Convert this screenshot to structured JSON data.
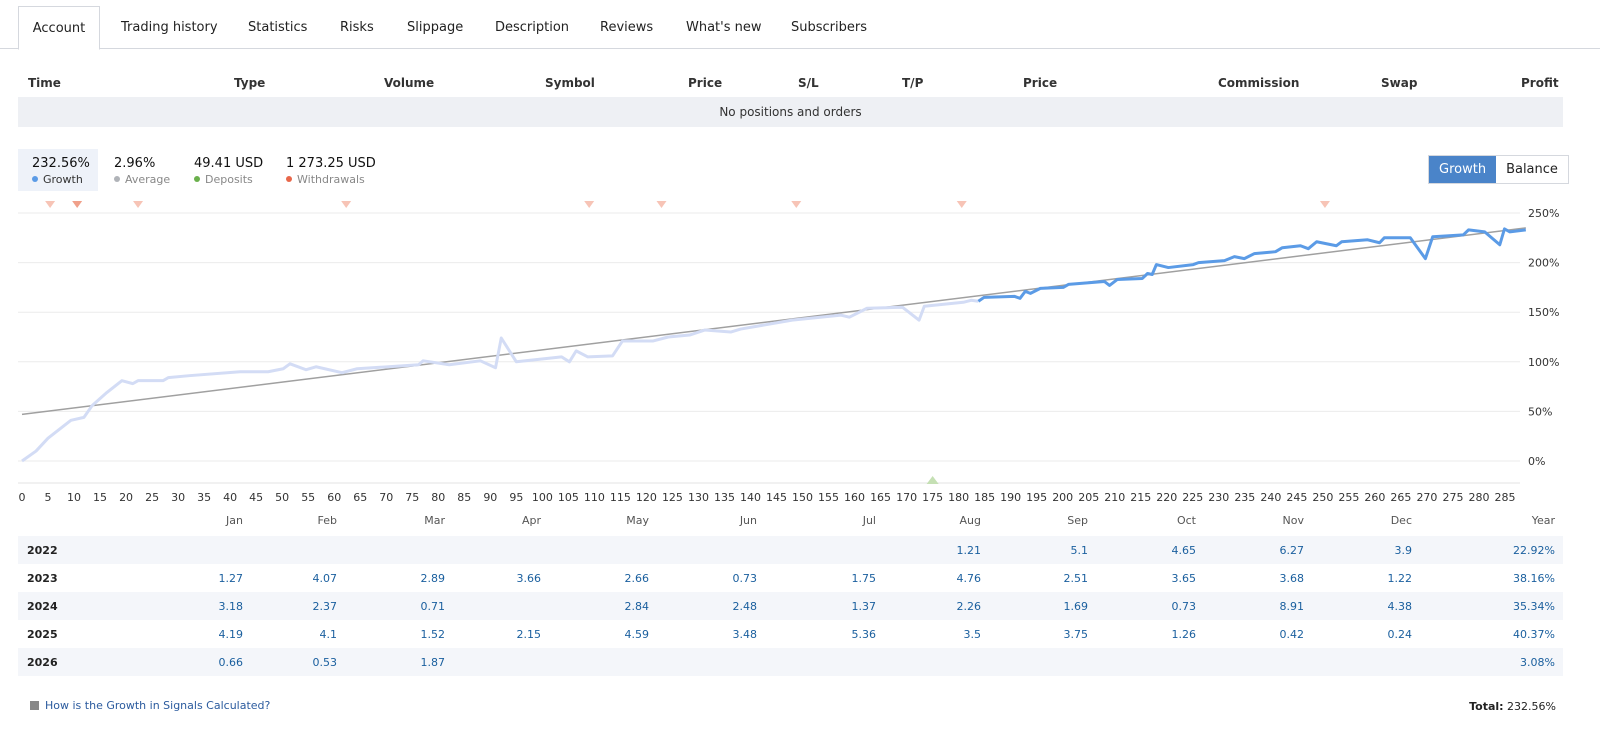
{
  "tabs": [
    "Account",
    "Trading history",
    "Statistics",
    "Risks",
    "Slippage",
    "Description",
    "Reviews",
    "What's new",
    "Subscribers"
  ],
  "active_tab": "Account",
  "positions": {
    "headers": [
      "Time",
      "Type",
      "Volume",
      "Symbol",
      "Price",
      "S/L",
      "T/P",
      "Price",
      "Commission",
      "Swap",
      "Profit"
    ],
    "empty_text": "No positions and orders"
  },
  "stats": [
    {
      "value": "232.56%",
      "label": "Growth",
      "color": "#5b9be6"
    },
    {
      "value": "2.96%",
      "label": "Average",
      "color": "#b0b3b8"
    },
    {
      "value": "49.41 USD",
      "label": "Deposits",
      "color": "#6ab04c"
    },
    {
      "value": "1 273.25 USD",
      "label": "Withdrawals",
      "color": "#e8674a"
    }
  ],
  "toggle": {
    "growth": "Growth",
    "balance": "Balance",
    "active": "Growth"
  },
  "chart_data": {
    "type": "line",
    "xlim": [
      0,
      285
    ],
    "ylim": [
      0,
      250
    ],
    "x_ticks": [
      0,
      5,
      10,
      15,
      20,
      25,
      30,
      35,
      40,
      45,
      50,
      55,
      60,
      65,
      70,
      75,
      80,
      85,
      90,
      95,
      100,
      105,
      110,
      115,
      120,
      125,
      130,
      135,
      140,
      145,
      150,
      155,
      160,
      165,
      170,
      175,
      180,
      185,
      190,
      195,
      200,
      205,
      210,
      215,
      220,
      225,
      230,
      235,
      240,
      245,
      250,
      255,
      260,
      265,
      270,
      275,
      280,
      285
    ],
    "y_ticks": [
      0,
      50,
      100,
      150,
      200,
      250
    ],
    "y_tick_suffix": "%",
    "grid": true,
    "series": [
      {
        "color": "#d3dcf5",
        "points": [
          [
            0,
            0
          ],
          [
            2.7,
            10
          ],
          [
            5,
            23
          ],
          [
            9.4,
            41
          ],
          [
            11.9,
            44
          ],
          [
            13.5,
            56
          ],
          [
            16.3,
            69
          ],
          [
            19.2,
            81
          ],
          [
            21.3,
            78
          ],
          [
            22.3,
            81
          ],
          [
            27.1,
            81
          ],
          [
            28.1,
            84
          ],
          [
            32.1,
            86
          ],
          [
            41.9,
            90
          ],
          [
            47.3,
            90
          ],
          [
            50.2,
            93
          ],
          [
            51.5,
            98
          ],
          [
            54.6,
            92
          ],
          [
            56.5,
            95
          ],
          [
            61.5,
            89
          ],
          [
            64.4,
            93
          ],
          [
            76.2,
            97
          ],
          [
            77.1,
            101
          ],
          [
            82.1,
            97
          ],
          [
            88.1,
            101
          ],
          [
            91,
            94
          ],
          [
            92.1,
            124
          ],
          [
            95,
            100
          ],
          [
            103.7,
            105
          ],
          [
            105.2,
            100
          ],
          [
            106.5,
            111
          ],
          [
            108.7,
            105
          ],
          [
            113.5,
            106
          ],
          [
            115.4,
            121
          ],
          [
            121.3,
            121
          ],
          [
            124.2,
            125
          ],
          [
            128.3,
            127
          ],
          [
            131.2,
            132
          ],
          [
            136.2,
            130
          ],
          [
            138.1,
            133
          ],
          [
            148,
            142
          ],
          [
            157.4,
            147
          ],
          [
            159,
            145
          ],
          [
            162.4,
            154
          ],
          [
            169.2,
            155
          ],
          [
            172.4,
            142
          ],
          [
            173.4,
            156
          ],
          [
            180.9,
            160
          ],
          [
            182.4,
            162
          ],
          [
            183.8,
            161
          ]
        ]
      },
      {
        "color": "#5b9be6",
        "points": [
          [
            183.8,
            161
          ],
          [
            184.9,
            165
          ],
          [
            190.7,
            166
          ],
          [
            191.8,
            164
          ],
          [
            192.8,
            171
          ],
          [
            193.8,
            169
          ],
          [
            195.7,
            174
          ],
          [
            200.1,
            175
          ],
          [
            201.1,
            178
          ],
          [
            208,
            181
          ],
          [
            209,
            177
          ],
          [
            210.5,
            183
          ],
          [
            215.3,
            184
          ],
          [
            216.3,
            189
          ],
          [
            217.2,
            188
          ],
          [
            218,
            198
          ],
          [
            220.3,
            195
          ],
          [
            225.1,
            198
          ],
          [
            226.1,
            200
          ],
          [
            231.1,
            202
          ],
          [
            233,
            206
          ],
          [
            234.9,
            204
          ],
          [
            236.8,
            209
          ],
          [
            240.9,
            211
          ],
          [
            242.2,
            215
          ],
          [
            245.7,
            217
          ],
          [
            247.2,
            214
          ],
          [
            248.8,
            221
          ],
          [
            252.6,
            217
          ],
          [
            253.6,
            221
          ],
          [
            258.6,
            223
          ],
          [
            260.9,
            220
          ],
          [
            261.8,
            225
          ],
          [
            266.8,
            225
          ],
          [
            269.7,
            204
          ],
          [
            271.1,
            226
          ],
          [
            277,
            228
          ],
          [
            278,
            233
          ],
          [
            281.1,
            231
          ],
          [
            284,
            218
          ],
          [
            284.9,
            234
          ],
          [
            285.9,
            231
          ],
          [
            289,
            233
          ]
        ]
      }
    ],
    "trend": {
      "color": "#a0a0a0",
      "points": [
        [
          0,
          47
        ],
        [
          289,
          235
        ]
      ]
    },
    "withdrawal_markers": [
      5.4,
      10.6,
      22.3,
      62.3,
      109,
      122.9,
      148.8,
      180.6,
      250.4
    ],
    "deposit_markers": [
      175
    ]
  },
  "monthly": {
    "columns": [
      "Jan",
      "Feb",
      "Mar",
      "Apr",
      "May",
      "Jun",
      "Jul",
      "Aug",
      "Sep",
      "Oct",
      "Nov",
      "Dec",
      "Year"
    ],
    "rows": [
      {
        "year": "2022",
        "values": [
          "",
          "",
          "",
          "",
          "",
          "",
          "",
          "1.21",
          "5.1",
          "4.65",
          "6.27",
          "3.9",
          "22.92%"
        ]
      },
      {
        "year": "2023",
        "values": [
          "1.27",
          "4.07",
          "2.89",
          "3.66",
          "2.66",
          "0.73",
          "1.75",
          "4.76",
          "2.51",
          "3.65",
          "3.68",
          "1.22",
          "38.16%"
        ]
      },
      {
        "year": "2024",
        "values": [
          "3.18",
          "2.37",
          "0.71",
          "",
          "2.84",
          "2.48",
          "1.37",
          "2.26",
          "1.69",
          "0.73",
          "8.91",
          "4.38",
          "35.34%"
        ]
      },
      {
        "year": "2025",
        "values": [
          "4.19",
          "4.1",
          "1.52",
          "2.15",
          "4.59",
          "3.48",
          "5.36",
          "3.5",
          "3.75",
          "1.26",
          "0.42",
          "0.24",
          "40.37%"
        ]
      },
      {
        "year": "2026",
        "values": [
          "0.66",
          "0.53",
          "1.87",
          "",
          "",
          "",
          "",
          "",
          "",
          "",
          "",
          "",
          "3.08%"
        ]
      }
    ]
  },
  "footer": {
    "link": "How is the Growth in Signals Calculated?",
    "total_label": "Total:",
    "total_value": "232.56%"
  }
}
